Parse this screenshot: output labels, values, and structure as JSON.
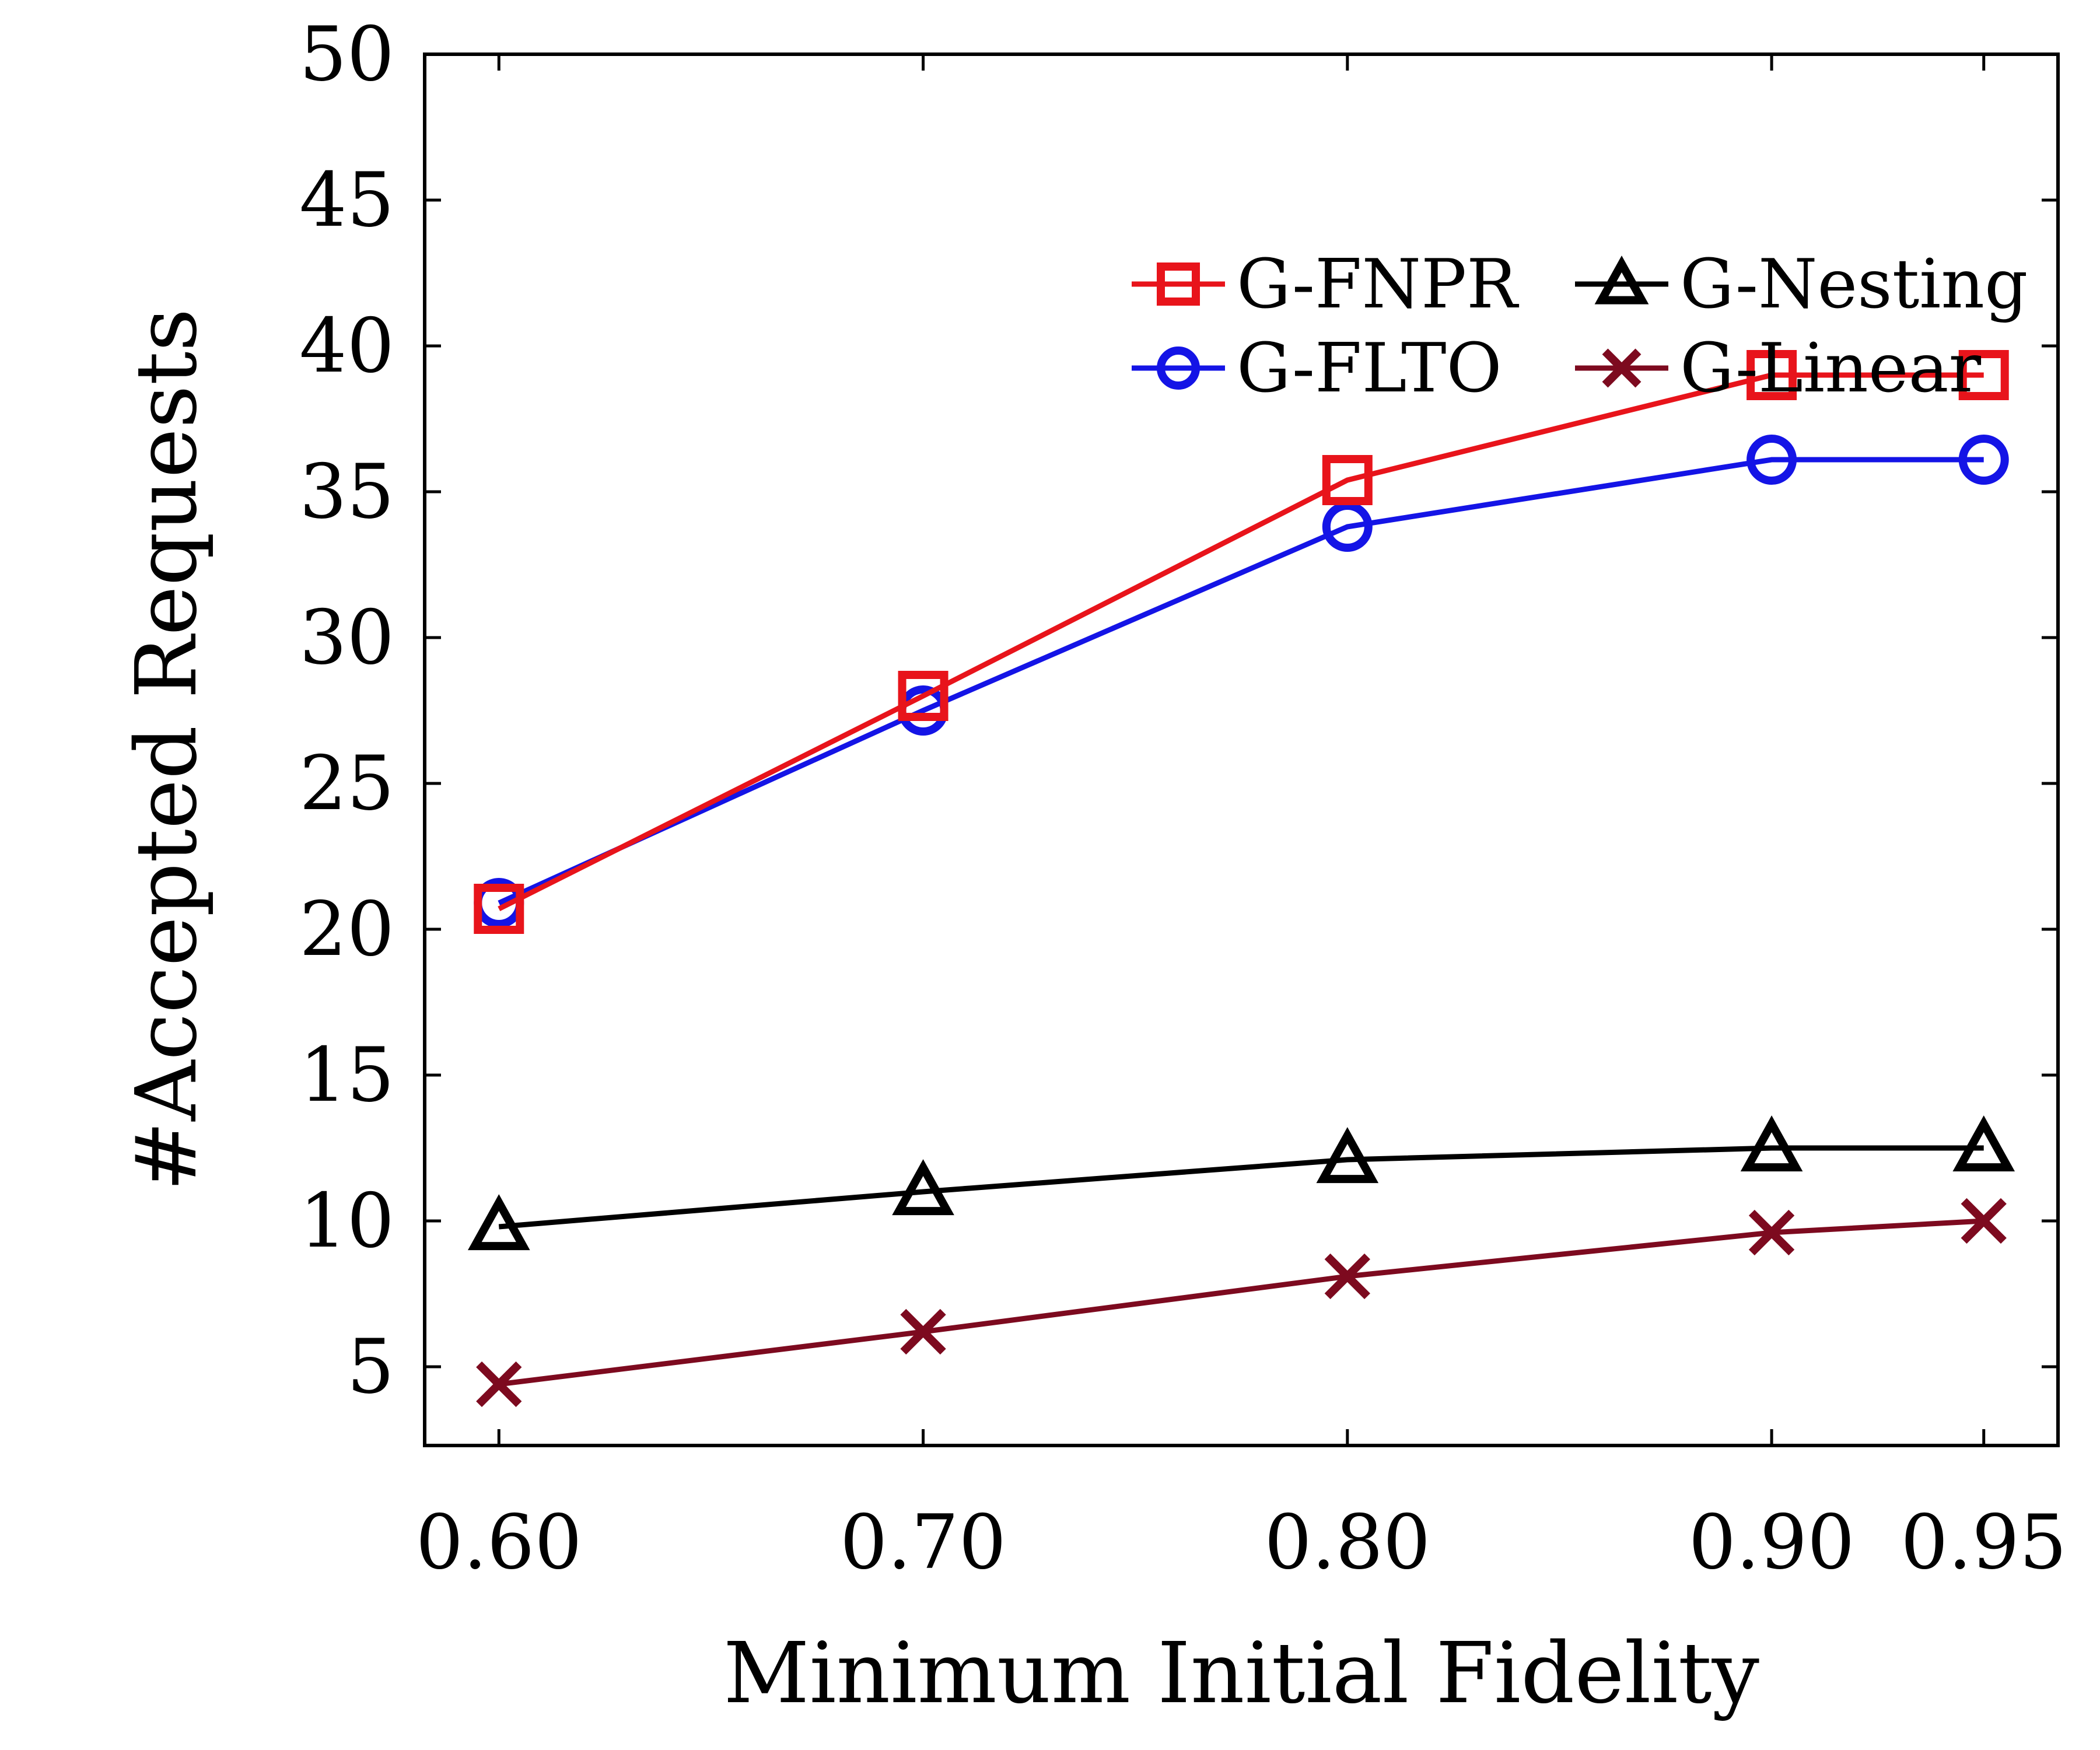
{
  "chart_data": {
    "type": "line",
    "xlabel": "Minimum Initial Fidelity",
    "ylabel": "#Accepted Requests",
    "x": [
      0.6,
      0.7,
      0.8,
      0.9,
      0.95
    ],
    "x_tick_labels": [
      "0.60",
      "0.70",
      "0.80",
      "0.90",
      "0.95"
    ],
    "y_ticks": [
      5,
      10,
      15,
      20,
      25,
      30,
      35,
      40,
      45,
      50
    ],
    "y_tick_labels": [
      "5",
      "10",
      "15",
      "20",
      "25",
      "30",
      "35",
      "40",
      "45",
      "50"
    ],
    "xlim": [
      0.5825,
      0.9675
    ],
    "ylim": [
      2.3,
      50
    ],
    "grid": false,
    "legend_position": "top-right",
    "series": [
      {
        "name": "G-FNPR",
        "marker": "square",
        "color": "#e8141b",
        "values": [
          20.7,
          28.0,
          35.4,
          39.0,
          39.0
        ]
      },
      {
        "name": "G-FLTO",
        "marker": "circle",
        "color": "#1414e6",
        "values": [
          20.9,
          27.5,
          33.8,
          36.1,
          36.1
        ]
      },
      {
        "name": "G-Nesting",
        "marker": "triangle",
        "color": "#000000",
        "values": [
          9.8,
          11.0,
          12.1,
          12.5,
          12.5
        ]
      },
      {
        "name": "G-Linear",
        "marker": "x",
        "color": "#7d0a1f",
        "values": [
          4.4,
          6.2,
          8.1,
          9.6,
          10.0
        ]
      }
    ]
  }
}
